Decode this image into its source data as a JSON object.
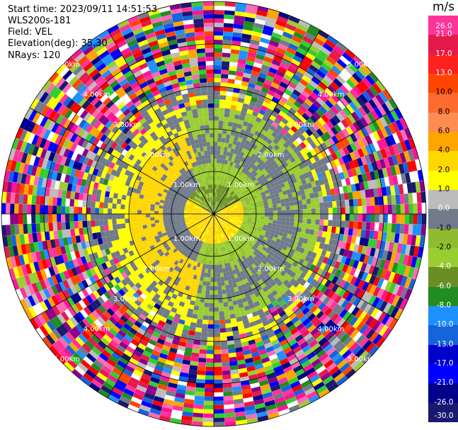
{
  "info": {
    "start_time": "Start time: 2023/09/11 14:51:53",
    "instrument": "WLS200s-181",
    "field": "Field: VEL",
    "elevation": "Elevation(deg): 35.30",
    "nrays": "NRays: 120"
  },
  "colorbar": {
    "unit": "m/s",
    "levels": [
      "26.0",
      "21.0",
      "17.0",
      "13.0",
      "10.0",
      "8.0",
      "6.0",
      "4.0",
      "2.0",
      "1.0",
      "0.0",
      "-1.0",
      "-2.0",
      "-4.0",
      "-6.0",
      "-8.0",
      "-10.0",
      "-13.0",
      "-17.0",
      "-21.0",
      "-26.0",
      "-30.0"
    ],
    "colors": [
      "#ff3399",
      "#e6194b",
      "#ff2020",
      "#ff4500",
      "#ff6a30",
      "#ff8c50",
      "#ffa500",
      "#ffd700",
      "#ffff00",
      "#bcbcbc",
      "#707a8a",
      "#8fbc2f",
      "#9acd32",
      "#6b8e23",
      "#228b22",
      "#1e90ff",
      "#1464dc",
      "#0000cd",
      "#0000ff",
      "#00008b",
      "#191970"
    ]
  },
  "chart_data": {
    "type": "ppi",
    "field": "VEL",
    "units": "m/s",
    "n_rays": 120,
    "elevation_deg": 35.3,
    "range_ring_labels": [
      "1.00km",
      "2.00km",
      "3.00km",
      "4.00km",
      "5.00km"
    ],
    "azimuth_spokes_deg": [
      0,
      30,
      60,
      90,
      120,
      150,
      180,
      210,
      240,
      270,
      300,
      330
    ]
  }
}
